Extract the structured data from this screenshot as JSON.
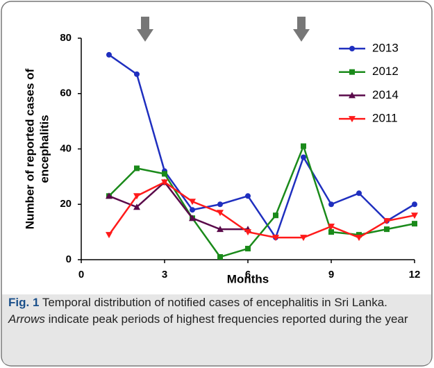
{
  "chart_data": {
    "type": "line",
    "xlabel": "Months",
    "ylabel": [
      "Number of reported cases of",
      "encephalitis"
    ],
    "x": [
      1,
      2,
      3,
      4,
      5,
      6,
      7,
      8,
      9,
      10,
      11,
      12
    ],
    "xlim": [
      0,
      12
    ],
    "xticks": [
      0,
      3,
      6,
      9,
      12
    ],
    "ylim": [
      0,
      80
    ],
    "yticks": [
      0,
      20,
      40,
      60,
      80
    ],
    "grid": false,
    "legend": "upper right",
    "series": [
      {
        "name": "2013",
        "color": "#1f2fbf",
        "marker": "circle",
        "values": [
          74,
          67,
          32,
          18,
          20,
          23,
          8,
          37,
          20,
          24,
          14,
          20
        ]
      },
      {
        "name": "2012",
        "color": "#1a8a1a",
        "marker": "square",
        "values": [
          23,
          33,
          31,
          15,
          1,
          4,
          16,
          41,
          10,
          9,
          11,
          13
        ]
      },
      {
        "name": "2014",
        "color": "#5a0a4a",
        "marker": "triangle-up",
        "values": [
          23,
          19,
          28,
          15,
          11,
          11,
          null,
          null,
          null,
          null,
          null,
          null
        ]
      },
      {
        "name": "2011",
        "color": "#ff1a1a",
        "marker": "triangle-down",
        "values": [
          9,
          23,
          28,
          21,
          17,
          10,
          8,
          8,
          12,
          8,
          14,
          16
        ]
      }
    ]
  },
  "caption": {
    "label": "Fig. 1",
    "text": "Temporal distribution of notified cases of encephalitis in Sri Lanka.",
    "italic": "Arrows",
    "rest": "indicate peak periods of highest frequencies reported during the year"
  }
}
